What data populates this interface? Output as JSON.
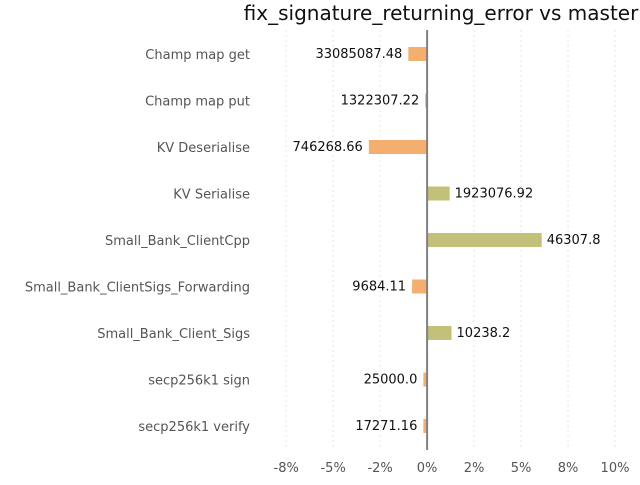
{
  "chart_data": {
    "type": "bar",
    "orientation": "horizontal",
    "title": "fix_signature_returning_error vs master",
    "xlabel": "",
    "ylabel": "",
    "xlim": [
      -0.09,
      0.1
    ],
    "xticks": [
      {
        "value": -0.075,
        "label": "-8%"
      },
      {
        "value": -0.05,
        "label": "-5%"
      },
      {
        "value": -0.025,
        "label": "-2%"
      },
      {
        "value": 0.0,
        "label": "0%"
      },
      {
        "value": 0.025,
        "label": "2%"
      },
      {
        "value": 0.05,
        "label": "5%"
      },
      {
        "value": 0.075,
        "label": "8%"
      },
      {
        "value": 0.1,
        "label": "10%"
      }
    ],
    "grid": true,
    "legend": "none",
    "colors": {
      "negative": "#f4ae6e",
      "positive": "#c3c07a"
    },
    "categories": [
      "Champ map get",
      "Champ map put",
      "KV Deserialise",
      "KV Serialise",
      "Small_Bank_ClientCpp",
      "Small_Bank_ClientSigs_Forwarding",
      "Small_Bank_Client_Sigs",
      "secp256k1 sign",
      "secp256k1 verify"
    ],
    "values": [
      -0.01,
      -0.001,
      -0.031,
      0.012,
      0.061,
      -0.008,
      0.013,
      -0.002,
      -0.002
    ],
    "labels": [
      "33085087.48",
      "1322307.22",
      "746268.66",
      "1923076.92",
      "46307.8",
      "9684.11",
      "10238.2",
      "25000.0",
      "17271.16"
    ]
  }
}
